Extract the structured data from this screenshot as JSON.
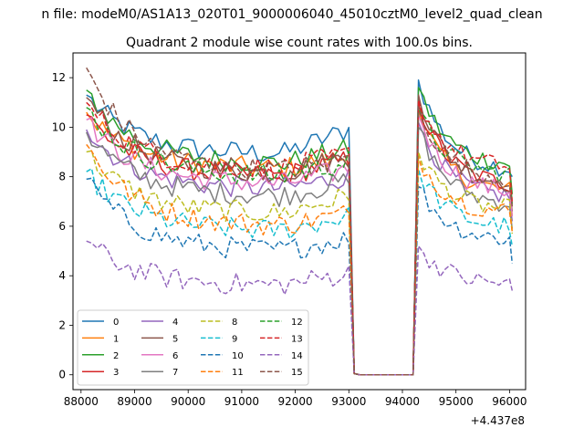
{
  "suptitle": "n file: modeM0/AS1A13_020T01_9000006040_45010cztM0_level2_quad_clean",
  "chart_data": {
    "type": "line",
    "title": "Quadrant 2 module wise count rates with 100.0s bins.",
    "xlabel": "",
    "ylabel": "",
    "x_offset_label": "+4.437e8",
    "xlim": [
      87850,
      96300
    ],
    "ylim": [
      -0.6,
      13.0
    ],
    "x_ticks": [
      88000,
      89000,
      90000,
      91000,
      92000,
      93000,
      94000,
      95000,
      96000
    ],
    "x_tick_labels": [
      "88000",
      "89000",
      "90000",
      "91000",
      "92000",
      "93000",
      "94000",
      "95000",
      "96000"
    ],
    "y_ticks": [
      0,
      2,
      4,
      6,
      8,
      10,
      12
    ],
    "y_tick_labels": [
      "0",
      "2",
      "4",
      "6",
      "8",
      "10",
      "12"
    ],
    "grid": false,
    "legend_position": "lower-left",
    "segments": {
      "first": {
        "start": 88100,
        "end": 93000,
        "step": 100
      },
      "gap": [
        93100,
        93200,
        93300,
        93400,
        93500,
        93600,
        93700,
        93800,
        93900,
        94000,
        94100,
        94200
      ],
      "second": {
        "start": 94300,
        "end": 96000,
        "step": 100
      },
      "final_x": 96050
    },
    "series": [
      {
        "name": "0",
        "color": "#1f77b4",
        "dash": "solid",
        "start": 11.3,
        "plateau": 8.9,
        "rise": 9.9,
        "s2": 11.9,
        "s2end": 8.2,
        "end": 8.0
      },
      {
        "name": "1",
        "color": "#ff7f0e",
        "dash": "solid",
        "start": 10.6,
        "plateau": 8.3,
        "rise": 8.8,
        "s2": 10.7,
        "s2end": 7.3,
        "end": 6.4
      },
      {
        "name": "2",
        "color": "#2ca02c",
        "dash": "solid",
        "start": 11.5,
        "plateau": 8.5,
        "rise": 9.1,
        "s2": 11.6,
        "s2end": 8.4,
        "end": 7.3
      },
      {
        "name": "3",
        "color": "#d62728",
        "dash": "solid",
        "start": 10.5,
        "plateau": 8.0,
        "rise": 8.7,
        "s2": 11.0,
        "s2end": 7.6,
        "end": 6.8
      },
      {
        "name": "4",
        "color": "#9467bd",
        "dash": "solid",
        "start": 9.9,
        "plateau": 7.5,
        "rise": 8.0,
        "s2": 10.2,
        "s2end": 7.1,
        "end": 6.2
      },
      {
        "name": "5",
        "color": "#8c564b",
        "dash": "solid",
        "start": 11.2,
        "plateau": 8.1,
        "rise": 8.8,
        "s2": 11.3,
        "s2end": 7.6,
        "end": 6.6
      },
      {
        "name": "6",
        "color": "#e377c2",
        "dash": "solid",
        "start": 10.3,
        "plateau": 7.7,
        "rise": 8.3,
        "s2": 10.5,
        "s2end": 7.3,
        "end": 6.4
      },
      {
        "name": "7",
        "color": "#7f7f7f",
        "dash": "solid",
        "start": 9.8,
        "plateau": 7.2,
        "rise": 7.8,
        "s2": 10.0,
        "s2end": 6.8,
        "end": 5.9
      },
      {
        "name": "8",
        "color": "#bcbd22",
        "dash": "dashed",
        "start": 9.0,
        "plateau": 6.5,
        "rise": 7.2,
        "s2": 9.0,
        "s2end": 6.6,
        "end": 5.7
      },
      {
        "name": "9",
        "color": "#17becf",
        "dash": "dashed",
        "start": 8.2,
        "plateau": 5.8,
        "rise": 6.4,
        "s2": 8.3,
        "s2end": 5.9,
        "end": 5.2
      },
      {
        "name": "10",
        "color": "#1f77b4",
        "dash": "dashed",
        "start": 7.9,
        "plateau": 5.0,
        "rise": 5.5,
        "s2": 7.6,
        "s2end": 5.4,
        "end": 4.5
      },
      {
        "name": "11",
        "color": "#ff7f0e",
        "dash": "dashed",
        "start": 9.3,
        "plateau": 6.0,
        "rise": 6.5,
        "s2": 8.8,
        "s2end": 6.5,
        "end": 5.8
      },
      {
        "name": "12",
        "color": "#2ca02c",
        "dash": "dashed",
        "start": 10.8,
        "plateau": 8.0,
        "rise": 8.6,
        "s2": 10.7,
        "s2end": 8.0,
        "end": 6.9
      },
      {
        "name": "13",
        "color": "#d62728",
        "dash": "dashed",
        "start": 11.0,
        "plateau": 8.3,
        "rise": 8.9,
        "s2": 11.1,
        "s2end": 8.3,
        "end": 7.0
      },
      {
        "name": "14",
        "color": "#9467bd",
        "dash": "dashed",
        "start": 5.4,
        "plateau": 3.6,
        "rise": 4.1,
        "s2": 5.2,
        "s2end": 3.6,
        "end": 3.4
      },
      {
        "name": "15",
        "color": "#8c564b",
        "dash": "dashed",
        "start": 12.4,
        "plateau": 8.2,
        "rise": 8.7,
        "s2": 10.8,
        "s2end": 7.8,
        "end": 6.8
      }
    ]
  }
}
